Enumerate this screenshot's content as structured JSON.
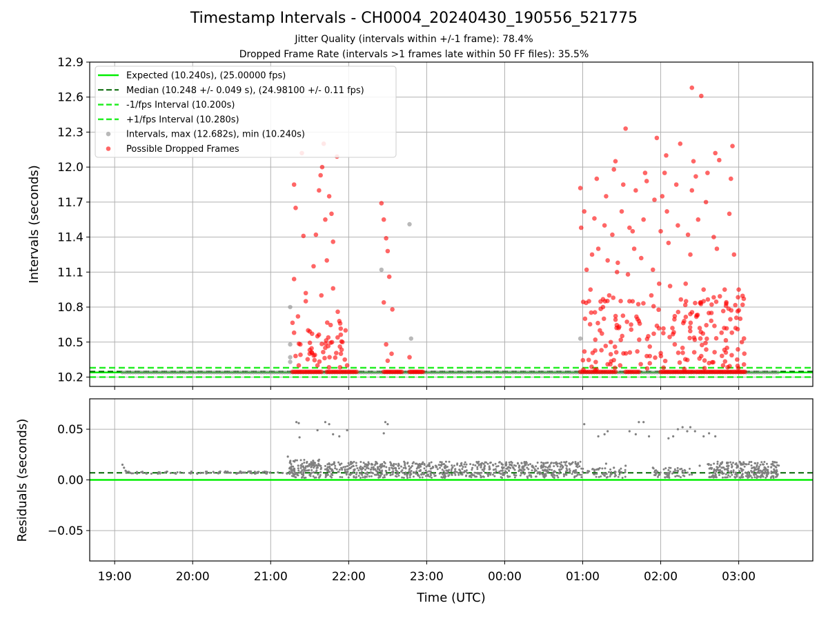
{
  "figure": {
    "title": "Timestamp Intervals - CH0004_20240430_190556_521775",
    "subtitle1": "Jitter Quality (intervals within +/-1 frame): 78.4%",
    "subtitle2": "Dropped Frame Rate (intervals >1 frames late within 50 FF files): 35.5%"
  },
  "colors": {
    "expected": "#00ee00",
    "median": "#006400",
    "interval_band": "#22ee22",
    "intervals_gray": "#808080",
    "dropped_red": "#ff0000",
    "grid": "#b0b0b0"
  },
  "chart_data": [
    {
      "type": "scatter",
      "panel": "intervals",
      "ylabel": "Intervals (seconds)",
      "xlabel": "",
      "x_unit": "hours from 19:00 UTC",
      "xlim": [
        -0.32,
        8.95
      ],
      "ylim": [
        10.12,
        12.9
      ],
      "x_ticks": [
        {
          "v": 0,
          "label": "19:00"
        },
        {
          "v": 1,
          "label": "20:00"
        },
        {
          "v": 2,
          "label": "21:00"
        },
        {
          "v": 3,
          "label": "22:00"
        },
        {
          "v": 4,
          "label": "23:00"
        },
        {
          "v": 5,
          "label": "00:00"
        },
        {
          "v": 6,
          "label": "01:00"
        },
        {
          "v": 7,
          "label": "02:00"
        },
        {
          "v": 8,
          "label": "03:00"
        }
      ],
      "y_ticks": [
        "10.2",
        "10.5",
        "10.8",
        "11.1",
        "11.4",
        "11.7",
        "12.0",
        "12.3",
        "12.6",
        "12.9"
      ],
      "grid": true,
      "legend_position": "upper-left",
      "legend": [
        {
          "label": "Expected (10.240s), (25.00000 fps)",
          "style": "line"
        },
        {
          "label": "Median (10.248 +/- 0.049 s), (24.98100 +/- 0.11 fps)",
          "style": "dashed-dark"
        },
        {
          "label": "-1/fps Interval (10.200s)",
          "style": "dashed"
        },
        {
          "label": "+1/fps Interval (10.280s)",
          "style": "dashed"
        },
        {
          "label": "Intervals, max (12.682s), min (10.240s)",
          "style": "gray-dot"
        },
        {
          "label": "Possible Dropped Frames",
          "style": "red-dot"
        }
      ],
      "reference_lines": {
        "expected": 10.24,
        "median": 10.248,
        "minus_1fps": 10.2,
        "plus_1fps": 10.28
      },
      "series": [
        {
          "name": "Intervals, max (12.682s), min (10.240s)",
          "points": [
            [
              2.25,
              10.8
            ],
            [
              2.25,
              10.48
            ],
            [
              2.25,
              10.37
            ],
            [
              2.25,
              10.33
            ],
            [
              3.42,
              11.12
            ],
            [
              3.78,
              11.51
            ],
            [
              3.8,
              10.53
            ],
            [
              5.97,
              10.53
            ]
          ]
        },
        {
          "name": "Possible Dropped Frames",
          "points": [
            [
              2.3,
              11.85
            ],
            [
              2.32,
              11.65
            ],
            [
              2.3,
              11.04
            ],
            [
              2.35,
              10.72
            ],
            [
              2.3,
              10.58
            ],
            [
              2.38,
              10.48
            ],
            [
              2.42,
              11.41
            ],
            [
              2.4,
              12.12
            ],
            [
              2.45,
              10.85
            ],
            [
              2.48,
              10.6
            ],
            [
              2.5,
              10.4
            ],
            [
              2.55,
              11.15
            ],
            [
              2.58,
              11.42
            ],
            [
              2.6,
              10.55
            ],
            [
              2.62,
              11.8
            ],
            [
              2.64,
              11.93
            ],
            [
              2.66,
              12.0
            ],
            [
              2.68,
              12.2
            ],
            [
              2.7,
              11.55
            ],
            [
              2.72,
              11.2
            ],
            [
              2.75,
              11.75
            ],
            [
              2.78,
              11.6
            ],
            [
              2.8,
              11.36
            ],
            [
              2.8,
              10.96
            ],
            [
              2.85,
              12.09
            ],
            [
              2.86,
              10.76
            ],
            [
              2.88,
              10.68
            ],
            [
              2.9,
              10.4
            ],
            [
              2.92,
              10.5
            ],
            [
              2.95,
              10.35
            ],
            [
              2.96,
              10.6
            ],
            [
              2.98,
              10.3
            ],
            [
              2.6,
              10.3
            ],
            [
              2.7,
              10.45
            ],
            [
              2.36,
              10.3
            ],
            [
              2.65,
              10.9
            ],
            [
              2.45,
              10.92
            ],
            [
              3.42,
              11.69
            ],
            [
              3.45,
              11.55
            ],
            [
              3.48,
              11.39
            ],
            [
              3.5,
              11.28
            ],
            [
              3.45,
              10.84
            ],
            [
              3.52,
              11.06
            ],
            [
              3.56,
              10.78
            ],
            [
              3.48,
              10.48
            ],
            [
              3.55,
              10.4
            ],
            [
              3.5,
              10.34
            ],
            [
              3.78,
              10.37
            ],
            [
              5.97,
              11.82
            ],
            [
              5.98,
              11.48
            ],
            [
              6.02,
              11.62
            ],
            [
              6.05,
              11.12
            ],
            [
              6.08,
              10.85
            ],
            [
              6.03,
              10.7
            ],
            [
              6.1,
              10.95
            ],
            [
              6.12,
              11.25
            ],
            [
              6.15,
              11.56
            ],
            [
              6.18,
              11.9
            ],
            [
              6.2,
              11.3
            ],
            [
              6.22,
              10.6
            ],
            [
              6.24,
              10.43
            ],
            [
              6.26,
              10.8
            ],
            [
              6.28,
              11.5
            ],
            [
              6.3,
              11.75
            ],
            [
              6.32,
              11.2
            ],
            [
              6.34,
              10.9
            ],
            [
              6.36,
              10.5
            ],
            [
              6.38,
              11.42
            ],
            [
              6.4,
              11.98
            ],
            [
              6.42,
              12.05
            ],
            [
              6.44,
              11.1
            ],
            [
              6.46,
              10.62
            ],
            [
              6.48,
              10.3
            ],
            [
              6.5,
              11.62
            ],
            [
              6.52,
              11.85
            ],
            [
              6.55,
              12.33
            ],
            [
              6.58,
              11.08
            ],
            [
              6.6,
              10.85
            ],
            [
              6.62,
              10.65
            ],
            [
              6.64,
              11.45
            ],
            [
              6.66,
              11.3
            ],
            [
              6.68,
              11.8
            ],
            [
              6.7,
              10.42
            ],
            [
              6.72,
              10.68
            ],
            [
              6.75,
              11.22
            ],
            [
              6.78,
              11.55
            ],
            [
              6.8,
              11.95
            ],
            [
              6.82,
              11.88
            ],
            [
              6.84,
              10.55
            ],
            [
              6.86,
              10.38
            ],
            [
              6.88,
              10.9
            ],
            [
              6.9,
              11.12
            ],
            [
              6.92,
              11.72
            ],
            [
              6.95,
              12.25
            ],
            [
              6.98,
              11.0
            ],
            [
              7.0,
              11.45
            ],
            [
              7.02,
              11.75
            ],
            [
              7.05,
              11.95
            ],
            [
              7.07,
              12.1
            ],
            [
              7.08,
              11.62
            ],
            [
              7.1,
              11.35
            ],
            [
              7.12,
              10.98
            ],
            [
              7.15,
              10.62
            ],
            [
              7.18,
              10.48
            ],
            [
              7.2,
              11.85
            ],
            [
              7.22,
              11.5
            ],
            [
              7.25,
              12.2
            ],
            [
              7.28,
              10.45
            ],
            [
              7.3,
              10.68
            ],
            [
              7.32,
              11.0
            ],
            [
              7.35,
              11.42
            ],
            [
              7.38,
              11.25
            ],
            [
              7.4,
              11.8
            ],
            [
              7.42,
              12.05
            ],
            [
              7.45,
              11.92
            ],
            [
              7.48,
              11.55
            ],
            [
              7.5,
              10.62
            ],
            [
              7.52,
              10.38
            ],
            [
              7.55,
              10.95
            ],
            [
              7.58,
              11.7
            ],
            [
              7.6,
              11.95
            ],
            [
              7.62,
              10.32
            ],
            [
              7.65,
              10.75
            ],
            [
              7.68,
              11.4
            ],
            [
              7.7,
              12.12
            ],
            [
              7.72,
              11.3
            ],
            [
              7.75,
              12.06
            ],
            [
              7.78,
              10.58
            ],
            [
              7.8,
              10.3
            ],
            [
              7.82,
              10.95
            ],
            [
              7.85,
              10.45
            ],
            [
              7.88,
              11.6
            ],
            [
              7.9,
              11.9
            ],
            [
              7.92,
              12.18
            ],
            [
              7.94,
              11.25
            ],
            [
              7.96,
              10.62
            ],
            [
              7.98,
              10.35
            ],
            [
              8.0,
              10.95
            ],
            [
              8.02,
              10.7
            ],
            [
              8.04,
              10.5
            ],
            [
              8.05,
              10.82
            ],
            [
              7.55,
              10.85
            ],
            [
              7.38,
              10.74
            ],
            [
              7.4,
              12.68
            ],
            [
              7.52,
              12.61
            ],
            [
              6.6,
              11.48
            ],
            [
              6.45,
              11.18
            ]
          ]
        }
      ]
    },
    {
      "type": "scatter",
      "panel": "residuals",
      "ylabel": "Residuals (seconds)",
      "xlabel": "Time (UTC)",
      "xlim": [
        -0.32,
        8.95
      ],
      "ylim": [
        -0.08,
        0.08
      ],
      "y_ticks": [
        "−0.05",
        "0.00",
        "0.05"
      ],
      "grid": true,
      "reference_lines": {
        "zero": 0.0,
        "median": 0.007
      },
      "series": [
        {
          "name": "Residuals",
          "points": [
            [
              0.1,
              0.015
            ],
            [
              0.12,
              0.012
            ],
            [
              0.14,
              0.009
            ],
            [
              0.15,
              0.007
            ],
            [
              0.18,
              0.008
            ],
            [
              0.2,
              0.007
            ],
            [
              2.22,
              0.023
            ],
            [
              2.25,
              0.018
            ],
            [
              2.33,
              0.057
            ],
            [
              2.36,
              0.056
            ],
            [
              2.37,
              0.042
            ],
            [
              2.6,
              0.049
            ],
            [
              2.7,
              0.057
            ],
            [
              2.75,
              0.055
            ],
            [
              2.8,
              0.045
            ],
            [
              2.88,
              0.043
            ],
            [
              2.98,
              0.049
            ],
            [
              3.45,
              0.046
            ],
            [
              3.47,
              0.057
            ],
            [
              3.5,
              0.055
            ],
            [
              6.02,
              0.055
            ],
            [
              6.2,
              0.043
            ],
            [
              6.28,
              0.045
            ],
            [
              6.32,
              0.048
            ],
            [
              6.6,
              0.048
            ],
            [
              6.68,
              0.045
            ],
            [
              6.72,
              0.057
            ],
            [
              6.78,
              0.057
            ],
            [
              6.85,
              0.043
            ],
            [
              7.1,
              0.041
            ],
            [
              7.16,
              0.043
            ],
            [
              7.22,
              0.05
            ],
            [
              7.28,
              0.052
            ],
            [
              7.34,
              0.048
            ],
            [
              7.38,
              0.052
            ],
            [
              7.44,
              0.048
            ],
            [
              7.55,
              0.043
            ],
            [
              7.62,
              0.046
            ],
            [
              7.7,
              0.043
            ],
            [
              6.4,
              0.012
            ],
            [
              6.55,
              0.014
            ],
            [
              6.15,
              0.01
            ],
            [
              6.3,
              0.016
            ],
            [
              6.9,
              0.012
            ],
            [
              7.5,
              0.014
            ],
            [
              7.65,
              0.011
            ]
          ],
          "bands": [
            {
              "x": [
                0.15,
                2.22
              ],
              "y": [
                0.006,
                0.0085
              ],
              "count": 90
            },
            {
              "x": [
                2.24,
                2.65
              ],
              "y": [
                0.002,
                0.02
              ],
              "count": 140
            },
            {
              "x": [
                2.7,
                3.5
              ],
              "y": [
                0.002,
                0.018
              ],
              "count": 200
            },
            {
              "x": [
                3.52,
                5.97
              ],
              "y": [
                0.002,
                0.018
              ],
              "count": 560
            },
            {
              "x": [
                5.98,
                6.55
              ],
              "y": [
                0.002,
                0.012
              ],
              "count": 60
            },
            {
              "x": [
                6.9,
                7.4
              ],
              "y": [
                0.002,
                0.012
              ],
              "count": 60
            },
            {
              "x": [
                7.6,
                8.52
              ],
              "y": [
                0.002,
                0.018
              ],
              "count": 260
            }
          ]
        }
      ]
    }
  ]
}
